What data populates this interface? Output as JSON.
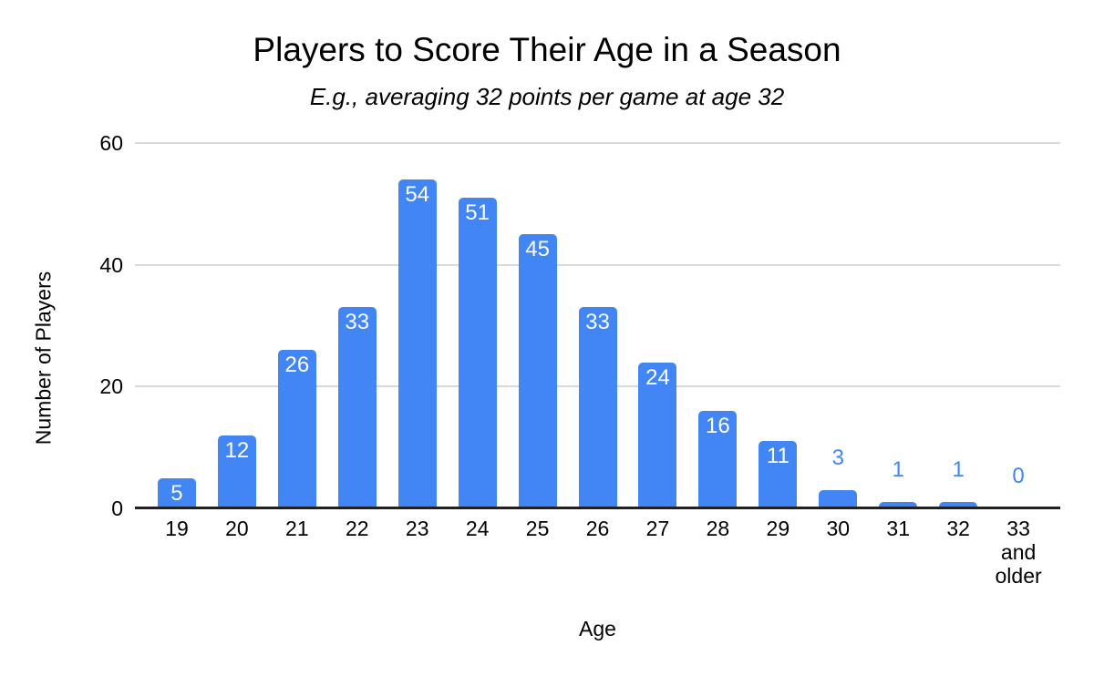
{
  "chart_data": {
    "type": "bar",
    "title": "Players to Score Their Age in a Season",
    "subtitle": "E.g., averaging 32 points per game at age 32",
    "xlabel": "Age",
    "ylabel": "Number of Players",
    "categories": [
      "19",
      "20",
      "21",
      "22",
      "23",
      "24",
      "25",
      "26",
      "27",
      "28",
      "29",
      "30",
      "31",
      "32",
      "33\nand\nolder"
    ],
    "values": [
      5,
      12,
      26,
      33,
      54,
      51,
      45,
      33,
      24,
      16,
      11,
      3,
      1,
      1,
      0
    ],
    "yticks": [
      0,
      20,
      40,
      60
    ],
    "ylim": [
      0,
      60
    ],
    "grid": true,
    "legend": "none",
    "value_labels": "inside-top for tall bars, above bar in series color for short bars",
    "colors": {
      "bar": "#4285f4",
      "value_label_inside": "#ffffff",
      "value_label_outside": "#4285f4",
      "gridline": "#d9d9d9",
      "axis_line": "#212121",
      "text": "#000000",
      "background": "#ffffff"
    }
  }
}
